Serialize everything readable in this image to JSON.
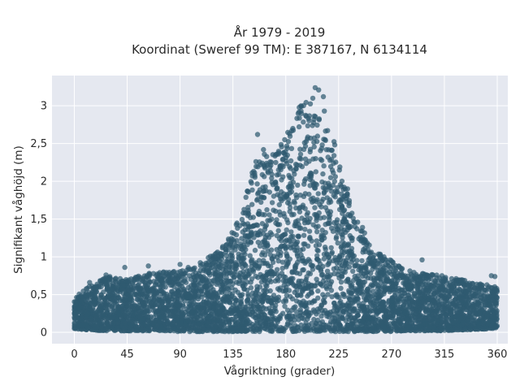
{
  "chart_data": {
    "type": "scatter",
    "title": "År 1979 - 2019",
    "subtitle": "Koordinat (Sweref 99 TM): E 387167, N 6134114",
    "xlabel": "Vågriktning (grader)",
    "ylabel": "Signifikant våghöjd (m)",
    "xlim": [
      -19,
      369
    ],
    "ylim": [
      -0.15,
      3.4
    ],
    "x_ticks": [
      0,
      45,
      90,
      135,
      180,
      225,
      270,
      315,
      360
    ],
    "x_tick_labels": [
      "0",
      "45",
      "90",
      "135",
      "180",
      "225",
      "270",
      "315",
      "360"
    ],
    "y_ticks": [
      0,
      0.5,
      1,
      1.5,
      2,
      2.5,
      3
    ],
    "y_tick_labels": [
      "0",
      "0,5",
      "1",
      "1,5",
      "2",
      "2,5",
      "3"
    ],
    "grid": true,
    "legend": "none",
    "marker_color": "#2f5a70",
    "plot_background": "#e5e8f0",
    "grid_color": "#ffffff",
    "envelope": {
      "x": [
        0,
        10,
        30,
        45,
        60,
        75,
        90,
        100,
        110,
        120,
        130,
        140,
        145,
        150,
        155,
        160,
        165,
        170,
        175,
        180,
        185,
        190,
        195,
        200,
        205,
        210,
        215,
        220,
        225,
        230,
        235,
        240,
        245,
        250,
        255,
        260,
        270,
        280,
        290,
        300,
        315,
        330,
        345,
        360
      ],
      "max_hs": [
        0.45,
        0.6,
        0.75,
        0.7,
        0.78,
        0.8,
        0.82,
        0.85,
        0.95,
        1.05,
        1.2,
        1.5,
        1.75,
        2.1,
        2.35,
        2.45,
        2.35,
        2.4,
        2.5,
        2.6,
        2.75,
        2.95,
        3.05,
        3.15,
        3.2,
        3.05,
        2.9,
        2.6,
        2.3,
        2.05,
        1.85,
        1.6,
        1.4,
        1.25,
        1.1,
        1.05,
        0.95,
        0.85,
        0.8,
        0.78,
        0.75,
        0.7,
        0.65,
        0.6
      ],
      "min_hs": [
        0.05,
        0.03,
        0.02,
        0.02,
        0.02,
        0.02,
        0.01,
        0.01,
        0.01,
        0.01,
        0.01,
        0.01,
        0.01,
        0.01,
        0.01,
        0.01,
        0.01,
        0.01,
        0.01,
        0.01,
        0.01,
        0.01,
        0.01,
        0.01,
        0.01,
        0.01,
        0.01,
        0.01,
        0.01,
        0.01,
        0.01,
        0.01,
        0.01,
        0.01,
        0.01,
        0.01,
        0.01,
        0.02,
        0.02,
        0.02,
        0.02,
        0.03,
        0.04,
        0.05
      ]
    },
    "outliers": [
      {
        "x": 13,
        "y": 0.66
      },
      {
        "x": 27,
        "y": 0.76
      },
      {
        "x": 43,
        "y": 0.86
      },
      {
        "x": 60,
        "y": 0.66
      },
      {
        "x": 63,
        "y": 0.88
      },
      {
        "x": 90,
        "y": 0.9
      },
      {
        "x": 97,
        "y": 0.86
      },
      {
        "x": 148,
        "y": 1.2
      },
      {
        "x": 156,
        "y": 2.62
      },
      {
        "x": 161,
        "y": 2.42
      },
      {
        "x": 186,
        "y": 2.7
      },
      {
        "x": 193,
        "y": 2.93
      },
      {
        "x": 203,
        "y": 3.1
      },
      {
        "x": 205,
        "y": 3.24
      },
      {
        "x": 208,
        "y": 3.21
      },
      {
        "x": 212,
        "y": 3.12
      },
      {
        "x": 296,
        "y": 0.96
      },
      {
        "x": 313,
        "y": 0.75
      },
      {
        "x": 355,
        "y": 0.75
      },
      {
        "x": 358,
        "y": 0.74
      }
    ]
  }
}
